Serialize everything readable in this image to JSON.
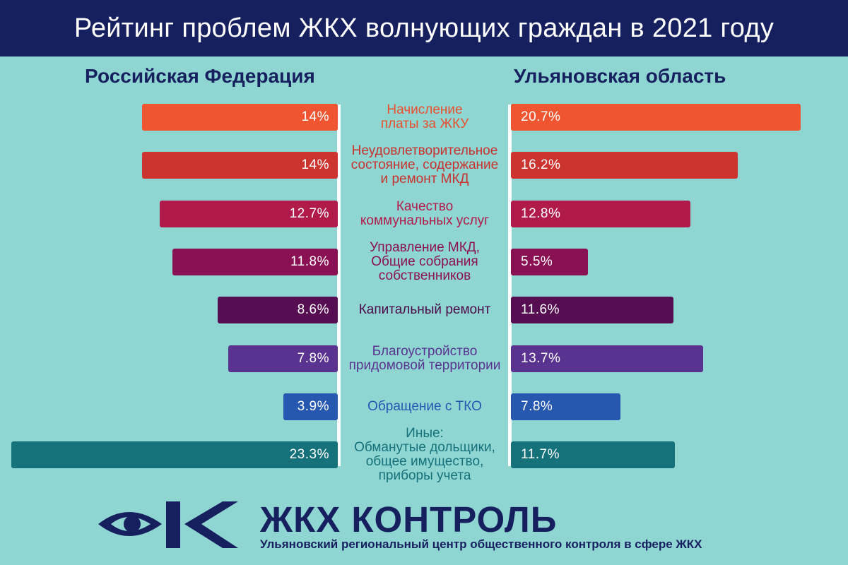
{
  "header": {
    "title": "Рейтинг проблем ЖКХ волнующих граждан в 2021 году"
  },
  "chart_data": {
    "type": "bar",
    "orientation": "horizontal",
    "layout": "mirrored",
    "title": "Рейтинг проблем ЖКХ волнующих граждан в 2021 году",
    "unit": "%",
    "categories": [
      "Начисление\nплаты за ЖКУ",
      "Неудовлетворительное\nсостояние, содержание\nи ремонт МКД",
      "Качество\nкоммунальных услуг",
      "Управление МКД,\nОбщие собрания\nсобственников",
      "Капитальный ремонт",
      "Благоустройство\nпридомовой территории",
      "Обращение с ТКО",
      "Иные:\nОбманутые дольщики,\nобщее имущество,\nприборы учета"
    ],
    "colors": [
      "#ee5530",
      "#cc3430",
      "#b01b4c",
      "#8a1054",
      "#560d52",
      "#5a3390",
      "#2658b0",
      "#15727a"
    ],
    "label_colors": [
      "#e8502e",
      "#c8322e",
      "#b21a4b",
      "#8c0f53",
      "#4a0a47",
      "#5a3390",
      "#2658b0",
      "#15727a"
    ],
    "series": [
      {
        "name": "Российская Федерация",
        "values": [
          14,
          14,
          12.7,
          11.8,
          8.6,
          7.8,
          3.9,
          23.3
        ],
        "labels": [
          "14%",
          "14%",
          "12.7%",
          "11.8%",
          "8.6%",
          "7.8%",
          "3.9%",
          "23.3%"
        ]
      },
      {
        "name": "Ульяновская область",
        "values": [
          20.7,
          16.2,
          12.8,
          5.5,
          11.6,
          13.7,
          7.8,
          11.7
        ],
        "labels": [
          "20.7%",
          "16.2%",
          "12.8%",
          "5.5%",
          "11.6%",
          "13.7%",
          "7.8%",
          "11.7%"
        ]
      }
    ]
  },
  "footer": {
    "brand": "ЖКХ КОНТРОЛЬ",
    "tagline": "Ульяновский региональный центр общественного контроля в сфере ЖКХ",
    "brand_color": "#17205f"
  }
}
